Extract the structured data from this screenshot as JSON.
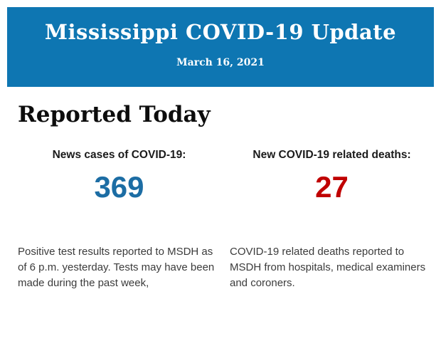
{
  "colors": {
    "banner_background": "#0e76b2",
    "banner_text": "#ffffff",
    "cases_number": "#1c6da4",
    "deaths_number": "#c00000",
    "heading_text": "#0d0d0d",
    "body_text": "#3b3b3b"
  },
  "banner": {
    "title": "Mississippi COVID-19 Update",
    "date": "March 16, 2021"
  },
  "section": {
    "heading": "Reported Today"
  },
  "stats": {
    "cases": {
      "label": "News cases of COVID-19:",
      "value": "369",
      "description": "Positive test results reported to MSDH as of 6 p.m. yesterday. Tests may have been made during the past week,"
    },
    "deaths": {
      "label": "New COVID-19 related deaths:",
      "value": "27",
      "description": "COVID-19 related deaths reported to MSDH from hospitals, medical examiners and coroners."
    }
  }
}
